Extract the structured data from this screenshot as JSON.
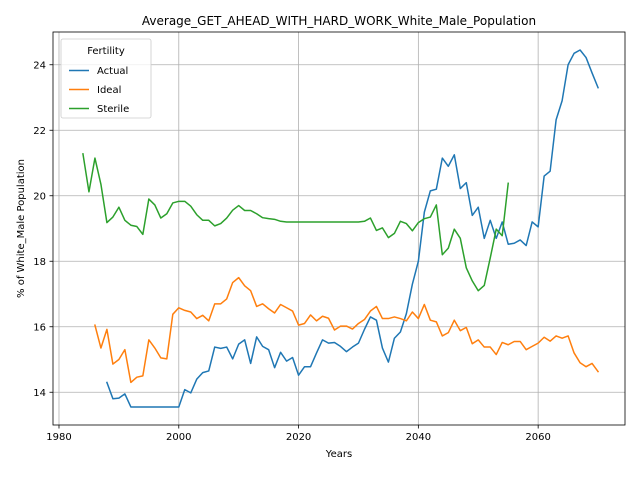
{
  "chart_data": {
    "type": "line",
    "title": "Average_GET_AHEAD_WITH_HARD_WORK_White_Male_Population",
    "xlabel": "Years",
    "ylabel": "% of White_Male Population",
    "xlim": [
      1979,
      2074.5
    ],
    "ylim": [
      13.0,
      25.0
    ],
    "xticks": [
      1980,
      2000,
      2020,
      2040,
      2060
    ],
    "yticks": [
      14,
      16,
      18,
      20,
      22,
      24
    ],
    "grid": true,
    "legend": {
      "title": "Fertility",
      "placement": "upper-left"
    },
    "series": [
      {
        "name": "Actual",
        "color": "#1f77b4",
        "x": [
          1988,
          1989,
          1990,
          1991,
          1992,
          1993,
          1994,
          1995,
          1996,
          1997,
          1998,
          1999,
          2000,
          2001,
          2002,
          2003,
          2004,
          2005,
          2006,
          2007,
          2008,
          2009,
          2010,
          2011,
          2012,
          2013,
          2014,
          2015,
          2016,
          2017,
          2018,
          2019,
          2020,
          2021,
          2022,
          2023,
          2024,
          2025,
          2026,
          2027,
          2028,
          2029,
          2030,
          2031,
          2032,
          2033,
          2034,
          2035,
          2036,
          2037,
          2038,
          2039,
          2040,
          2041,
          2042,
          2043,
          2044,
          2045,
          2046,
          2047,
          2048,
          2049,
          2050,
          2051,
          2052,
          2053,
          2054,
          2055,
          2056,
          2057,
          2058,
          2059,
          2060,
          2061,
          2062,
          2063,
          2064,
          2065,
          2066,
          2067,
          2068,
          2069,
          2070
        ],
        "y": [
          14.3,
          13.8,
          13.82,
          13.95,
          13.55,
          13.55,
          13.55,
          13.55,
          13.55,
          13.55,
          13.55,
          13.55,
          13.55,
          14.08,
          13.98,
          14.4,
          14.6,
          14.65,
          15.38,
          15.34,
          15.38,
          15.02,
          15.47,
          15.6,
          14.88,
          15.69,
          15.4,
          15.3,
          14.75,
          15.22,
          14.95,
          15.06,
          14.52,
          14.78,
          14.78,
          15.2,
          15.6,
          15.5,
          15.52,
          15.4,
          15.24,
          15.38,
          15.5,
          15.92,
          16.3,
          16.2,
          15.35,
          14.92,
          15.65,
          15.84,
          16.4,
          17.3,
          18.0,
          19.5,
          20.15,
          20.2,
          21.15,
          20.9,
          21.25,
          20.22,
          20.4,
          19.4,
          19.65,
          18.7,
          19.25,
          18.7,
          19.2,
          18.52,
          18.55,
          18.65,
          18.48,
          19.2,
          19.05,
          20.6,
          20.75,
          22.32,
          22.9,
          24.0,
          24.35,
          24.45,
          24.22,
          23.75,
          23.3
        ]
      },
      {
        "name": "Ideal",
        "color": "#ff7f0e",
        "x": [
          1986,
          1987,
          1988,
          1989,
          1990,
          1991,
          1992,
          1993,
          1994,
          1995,
          1996,
          1997,
          1998,
          1999,
          2000,
          2001,
          2002,
          2003,
          2004,
          2005,
          2006,
          2007,
          2008,
          2009,
          2010,
          2011,
          2012,
          2013,
          2014,
          2015,
          2016,
          2017,
          2018,
          2019,
          2020,
          2021,
          2022,
          2023,
          2024,
          2025,
          2026,
          2027,
          2028,
          2029,
          2030,
          2031,
          2032,
          2033,
          2034,
          2035,
          2036,
          2037,
          2038,
          2039,
          2040,
          2041,
          2042,
          2043,
          2044,
          2045,
          2046,
          2047,
          2048,
          2049,
          2050,
          2051,
          2052,
          2053,
          2054,
          2055,
          2056,
          2057,
          2058,
          2059,
          2060,
          2061,
          2062,
          2063,
          2064,
          2065,
          2066,
          2067,
          2068,
          2069,
          2070
        ],
        "y": [
          16.05,
          15.35,
          15.92,
          14.86,
          15.0,
          15.3,
          14.3,
          14.46,
          14.5,
          15.6,
          15.35,
          15.05,
          15.02,
          16.38,
          16.58,
          16.5,
          16.45,
          16.25,
          16.35,
          16.18,
          16.7,
          16.7,
          16.85,
          17.35,
          17.5,
          17.25,
          17.1,
          16.62,
          16.7,
          16.55,
          16.42,
          16.68,
          16.58,
          16.48,
          16.05,
          16.1,
          16.36,
          16.18,
          16.32,
          16.26,
          15.9,
          16.02,
          16.02,
          15.93,
          16.1,
          16.22,
          16.48,
          16.62,
          16.25,
          16.25,
          16.3,
          16.25,
          16.18,
          16.45,
          16.25,
          16.68,
          16.2,
          16.15,
          15.72,
          15.82,
          16.2,
          15.88,
          15.98,
          15.48,
          15.6,
          15.38,
          15.38,
          15.15,
          15.52,
          15.45,
          15.55,
          15.55,
          15.3,
          15.4,
          15.5,
          15.68,
          15.56,
          15.72,
          15.65,
          15.72,
          15.2,
          14.9,
          14.78,
          14.88,
          14.63
        ]
      },
      {
        "name": "Sterile",
        "color": "#2ca02c",
        "x": [
          1984,
          1985,
          1986,
          1987,
          1988,
          1989,
          1990,
          1991,
          1992,
          1993,
          1994,
          1995,
          1996,
          1997,
          1998,
          1999,
          2000,
          2001,
          2002,
          2003,
          2004,
          2005,
          2006,
          2007,
          2008,
          2009,
          2010,
          2011,
          2012,
          2013,
          2014,
          2015,
          2016,
          2017,
          2018,
          2019,
          2020,
          2021,
          2022,
          2023,
          2024,
          2025,
          2026,
          2027,
          2028,
          2029,
          2030,
          2031,
          2032,
          2033,
          2034,
          2035,
          2036,
          2037,
          2038,
          2039,
          2040,
          2041,
          2042,
          2043,
          2044,
          2045,
          2046,
          2047,
          2048,
          2049,
          2050,
          2051,
          2052,
          2053,
          2054,
          2055
        ],
        "y": [
          21.28,
          20.12,
          21.15,
          20.35,
          19.18,
          19.35,
          19.65,
          19.25,
          19.1,
          19.06,
          18.82,
          19.9,
          19.72,
          19.32,
          19.45,
          19.78,
          19.83,
          19.83,
          19.68,
          19.42,
          19.25,
          19.25,
          19.08,
          19.15,
          19.32,
          19.56,
          19.7,
          19.55,
          19.55,
          19.45,
          19.33,
          19.3,
          19.28,
          19.22,
          19.2,
          19.2,
          19.2,
          19.2,
          19.2,
          19.2,
          19.2,
          19.2,
          19.2,
          19.2,
          19.2,
          19.2,
          19.2,
          19.22,
          19.32,
          18.94,
          19.02,
          18.72,
          18.85,
          19.22,
          19.15,
          18.93,
          19.18,
          19.3,
          19.35,
          19.72,
          18.2,
          18.4,
          18.98,
          18.7,
          17.8,
          17.4,
          17.1,
          17.26,
          18.1,
          18.98,
          18.78,
          20.38
        ]
      }
    ]
  }
}
